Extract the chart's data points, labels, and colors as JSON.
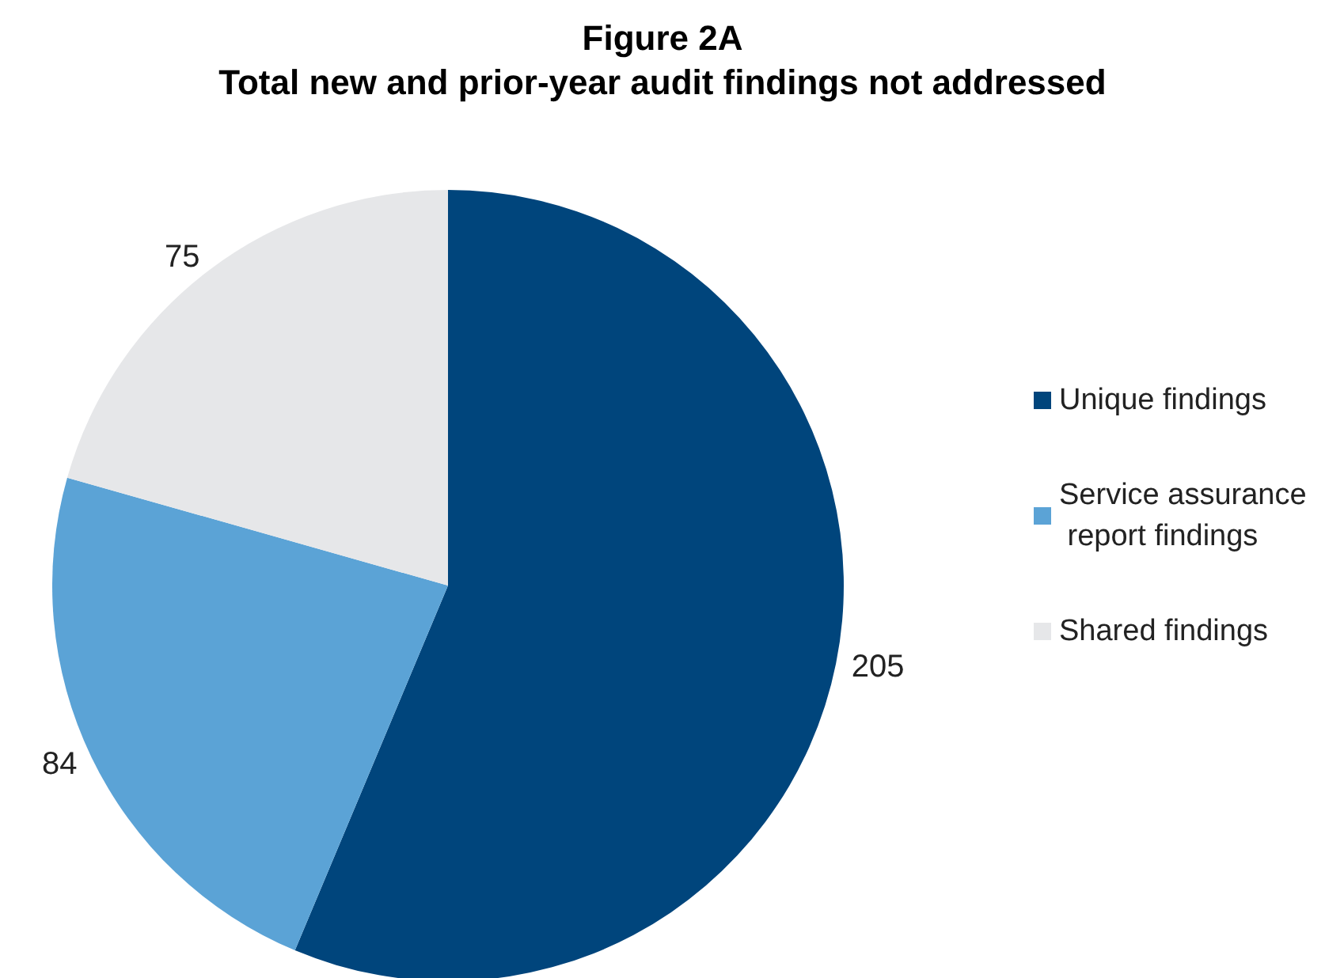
{
  "chart_data": {
    "type": "pie",
    "title": "Figure 2A",
    "subtitle": "Total new and prior-year audit findings not addressed",
    "categories": [
      "Unique findings",
      "Service assurance report findings",
      "Shared findings"
    ],
    "values": [
      205,
      84,
      75
    ],
    "colors": [
      "#00457c",
      "#5ba3d6",
      "#e6e7e9"
    ],
    "data_labels": true,
    "legend": "right"
  }
}
